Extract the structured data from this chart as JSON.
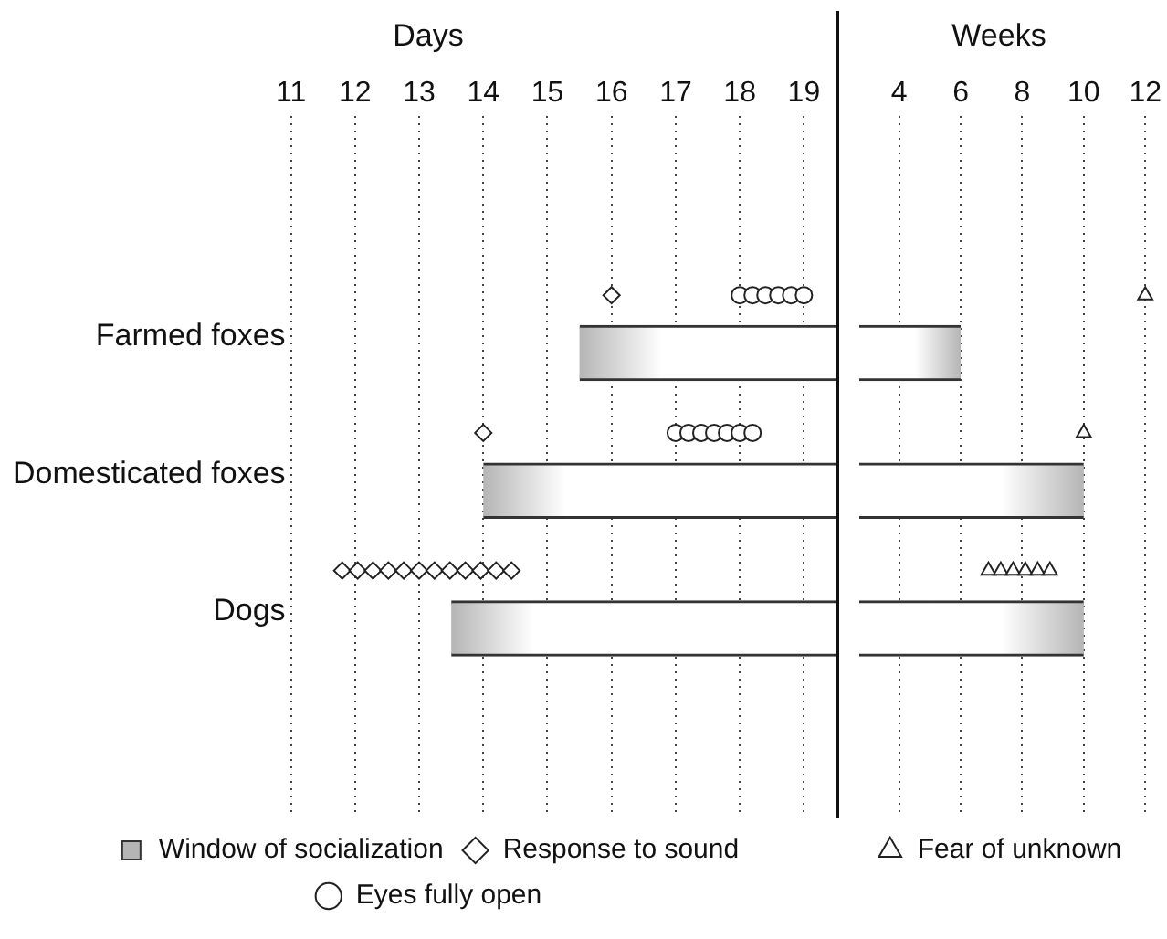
{
  "chart_data": [
    {
      "type": "bar",
      "orientation": "horizontal",
      "title": "Days",
      "categories": [
        "Farmed foxes",
        "Domesticated foxes",
        "Dogs"
      ],
      "series": [
        {
          "type": "bar",
          "name": "Window of socialization",
          "color": "#b5b5b5",
          "base": [
            15.5,
            14,
            13.5
          ],
          "values": [
            4.05,
            5.55,
            6.05
          ]
        },
        {
          "type": "scatter",
          "name": "Response to sound",
          "marker": "diamond",
          "color": "#222222",
          "x": [
            "Farmed foxes",
            "Domesticated foxes",
            "Dogs",
            "Dogs",
            "Dogs",
            "Dogs",
            "Dogs",
            "Dogs",
            "Dogs",
            "Dogs",
            "Dogs",
            "Dogs",
            "Dogs",
            "Dogs"
          ],
          "values": [
            16,
            14,
            11.8,
            12.04,
            12.28,
            12.52,
            12.76,
            13.0,
            13.24,
            13.48,
            13.72,
            13.96,
            14.2,
            14.44
          ]
        },
        {
          "type": "scatter",
          "name": "Eyes fully open",
          "marker": "circle",
          "color": "#222222",
          "x": [
            "Farmed foxes",
            "Farmed foxes",
            "Farmed foxes",
            "Farmed foxes",
            "Farmed foxes",
            "Farmed foxes",
            "Domesticated foxes",
            "Domesticated foxes",
            "Domesticated foxes",
            "Domesticated foxes",
            "Domesticated foxes",
            "Domesticated foxes",
            "Domesticated foxes"
          ],
          "values": [
            18.0,
            18.2,
            18.4,
            18.6,
            18.8,
            19.0,
            17.0,
            17.2,
            17.4,
            17.6,
            17.8,
            18.0,
            18.2
          ]
        }
      ],
      "xlim": [
        11,
        19.55
      ],
      "xticks": [
        11,
        12,
        13,
        14,
        15,
        16,
        17,
        18,
        19
      ],
      "grid": "x",
      "legend": "bottom"
    },
    {
      "type": "bar",
      "orientation": "horizontal",
      "title": "Weeks",
      "categories": [
        "Farmed foxes",
        "Domesticated foxes",
        "Dogs"
      ],
      "tick_labels": "x",
      "series": [
        {
          "type": "bar",
          "color": "#b5b5b5",
          "base": [
            2.7,
            2.7,
            2.7
          ],
          "values": [
            3.3,
            7.3,
            7.3
          ]
        },
        {
          "type": "scatter",
          "name": "Fear of unknown",
          "marker": "triangle",
          "color": "#222222",
          "x": [
            "Farmed foxes",
            "Domesticated foxes",
            "Dogs",
            "Dogs",
            "Dogs",
            "Dogs",
            "Dogs",
            "Dogs"
          ],
          "values": [
            12,
            10,
            6.9,
            7.3,
            7.7,
            8.1,
            8.5,
            8.9
          ]
        }
      ],
      "xlim": [
        2.7,
        12
      ],
      "xticks": [
        4,
        6,
        8,
        10,
        12
      ],
      "grid": "x",
      "legend": "bottom"
    }
  ]
}
